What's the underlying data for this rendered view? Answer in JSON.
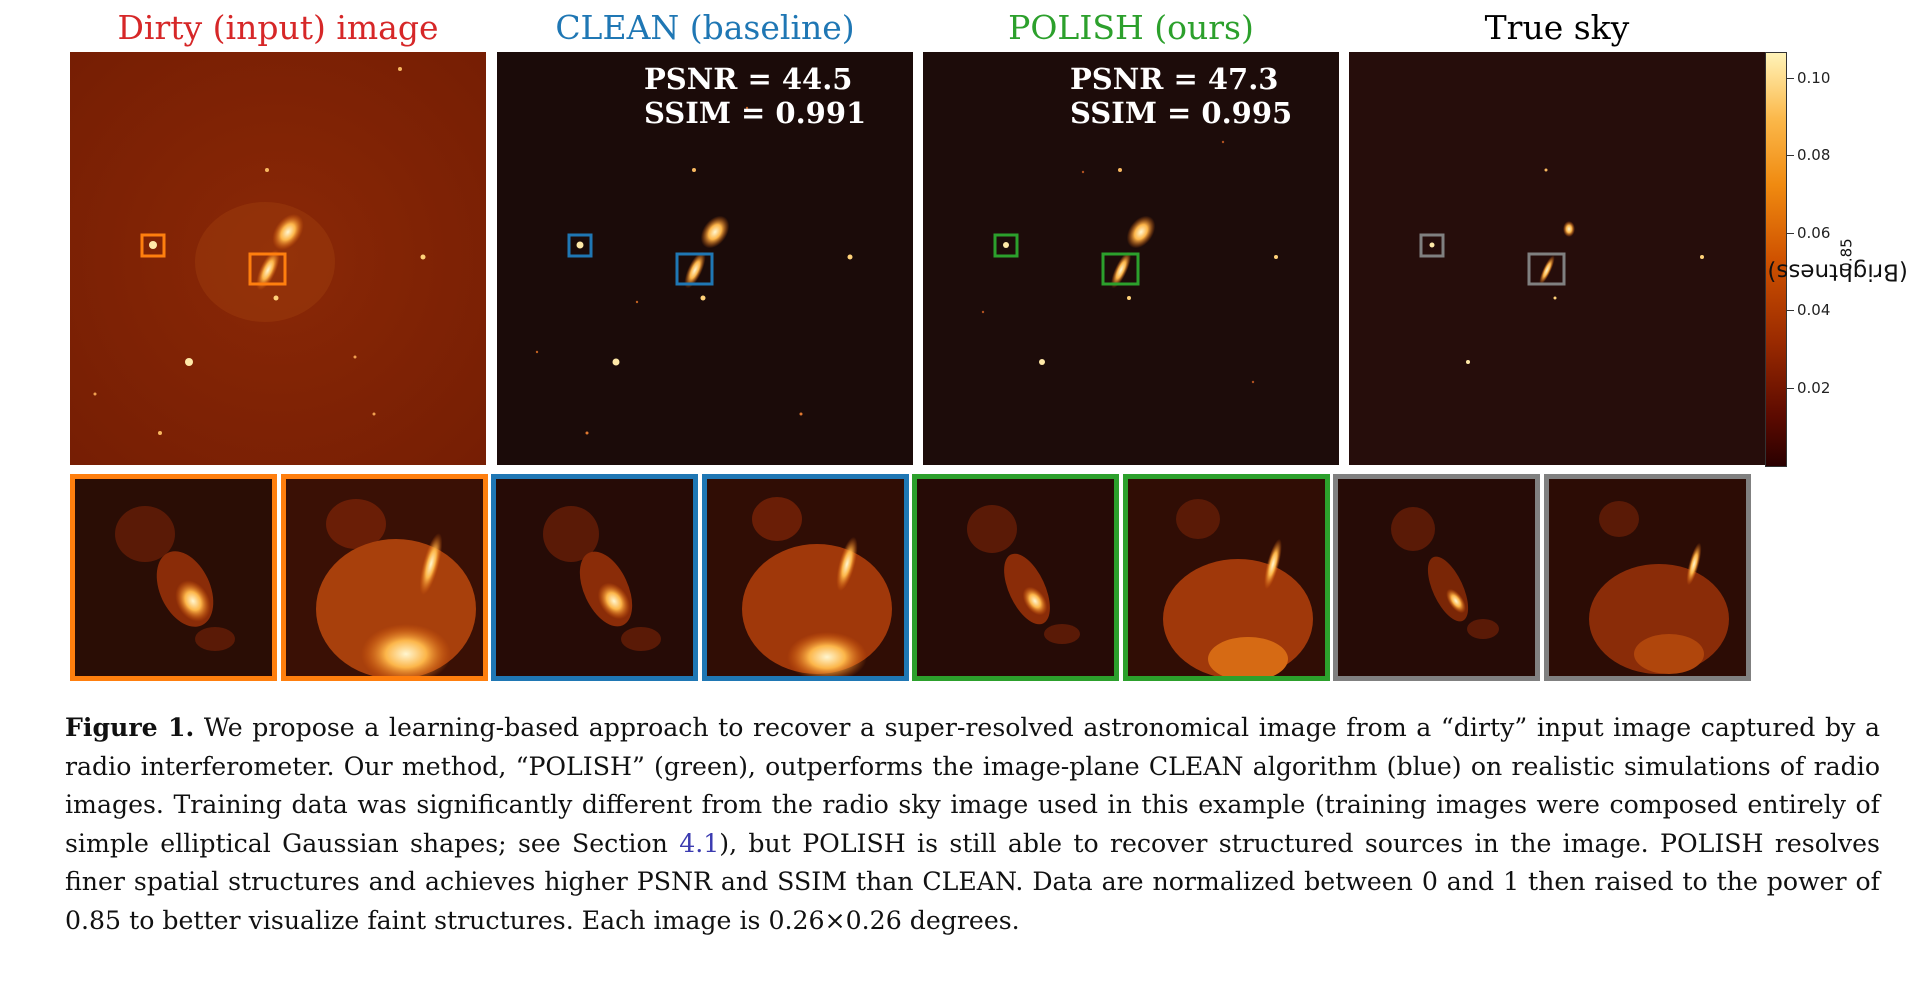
{
  "panels": [
    {
      "title": "Dirty (input) image",
      "color": "#d62728",
      "box_color": "#ff7f0e",
      "psnr": "",
      "ssim": ""
    },
    {
      "title": "CLEAN (baseline)",
      "color": "#1f77b4",
      "box_color": "#1f77b4",
      "psnr": "PSNR = 44.5",
      "ssim": "SSIM = 0.991"
    },
    {
      "title": "POLISH (ours)",
      "color": "#2ca02c",
      "box_color": "#2ca02c",
      "psnr": "PSNR = 47.3",
      "ssim": "SSIM = 0.995"
    },
    {
      "title": "True sky",
      "color": "#000000",
      "box_color": "#808080",
      "psnr": "",
      "ssim": ""
    }
  ],
  "colorbar": {
    "label": "(Brightness)",
    "exponent": "0.85",
    "ticks": [
      "0.10",
      "0.08",
      "0.06",
      "0.04",
      "0.02"
    ]
  },
  "caption": {
    "label": "Figure 1.",
    "text_1": " We propose a learning-based approach to recover a super-resolved astronomical image from a “dirty” input image captured by a radio interferometer. Our method, “POLISH” (green), outperforms the image-plane CLEAN algorithm (blue) on realistic simulations of radio images. Training data was significantly different from the radio sky image used in this example (training images were composed entirely of simple elliptical Gaussian shapes; see Section ",
    "ref": "4.1",
    "text_2": "), but POLISH is still able to recover structured sources in the image. POLISH resolves finer spatial structures and achieves higher PSNR and SSIM than CLEAN. Data are normalized between 0 and 1 then raised to the power of 0.85 to better visualize faint structures. Each image is 0.26×0.26 degrees."
  }
}
